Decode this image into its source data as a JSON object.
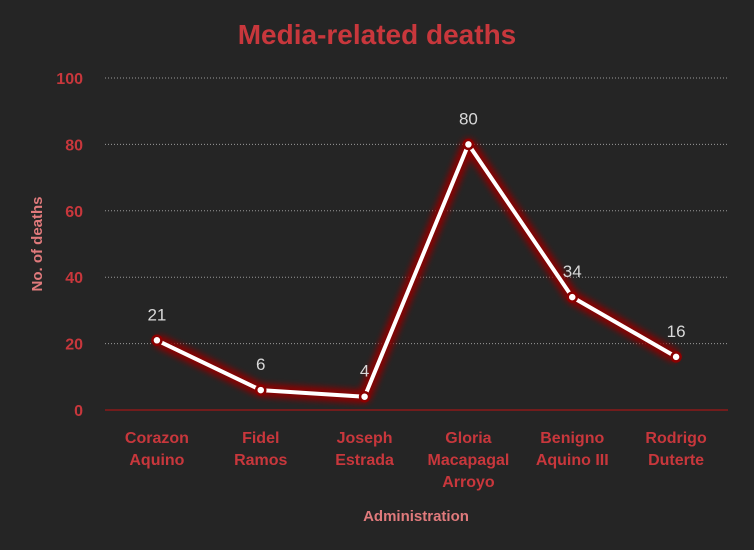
{
  "chart_data": {
    "type": "line",
    "title": "Media-related deaths",
    "xlabel": "Administration",
    "ylabel": "No. of deaths",
    "categories": [
      [
        "Corazon",
        "Aquino"
      ],
      [
        "Fidel",
        "Ramos"
      ],
      [
        "Joseph",
        "Estrada"
      ],
      [
        "Gloria",
        "Macapagal",
        "Arroyo"
      ],
      [
        "Benigno",
        "Aquino III"
      ],
      [
        "Rodrigo",
        "Duterte"
      ]
    ],
    "series": [
      {
        "values": [
          21,
          6,
          4,
          80,
          34,
          16
        ]
      }
    ],
    "ylim": [
      0,
      100
    ],
    "yticks": [
      0,
      20,
      40,
      60,
      80,
      100
    ],
    "grid": true,
    "data_labels": true,
    "colors": {
      "background": "#252525",
      "line": "#ffffff",
      "glow": "#8b0000",
      "marker_fill": "#ffffff",
      "marker_stroke": "#8b0000",
      "text_accent": "#c8373c"
    }
  }
}
